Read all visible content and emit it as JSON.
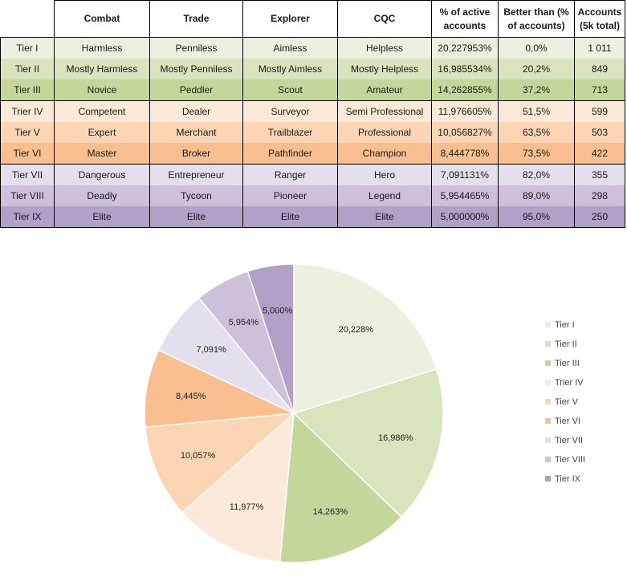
{
  "table": {
    "headers": [
      "",
      "Combat",
      "Trade",
      "Explorer",
      "CQC",
      "% of active accounts",
      "Better than (% of accounts)",
      "Accounts (5k total)"
    ],
    "rows": [
      {
        "tier": "Tier I",
        "combat": "Harmless",
        "trade": "Penniless",
        "explorer": "Aimless",
        "cqc": "Helpless",
        "pct": "20,227953%",
        "better": "0,0%",
        "accounts": "1 011",
        "color": "#ebf1de"
      },
      {
        "tier": "Tier II",
        "combat": "Mostly Harmless",
        "trade": "Mostly Penniless",
        "explorer": "Mostly Aimless",
        "cqc": "Mostly Helpless",
        "pct": "16,985534%",
        "better": "20,2%",
        "accounts": "849",
        "color": "#d8e4bc"
      },
      {
        "tier": "Tier III",
        "combat": "Novice",
        "trade": "Peddler",
        "explorer": "Scout",
        "cqc": "Amateur",
        "pct": "14,262855%",
        "better": "37,2%",
        "accounts": "713",
        "color": "#c4d79b"
      },
      {
        "tier": "Trier IV",
        "combat": "Competent",
        "trade": "Dealer",
        "explorer": "Surveyor",
        "cqc": "Semi Professional",
        "pct": "11,976605%",
        "better": "51,5%",
        "accounts": "599",
        "color": "#fde9d9"
      },
      {
        "tier": "Tier V",
        "combat": "Expert",
        "trade": "Merchant",
        "explorer": "Trailblazer",
        "cqc": "Professional",
        "pct": "10,056827%",
        "better": "63,5%",
        "accounts": "503",
        "color": "#fcd5b4"
      },
      {
        "tier": "Tier VI",
        "combat": "Master",
        "trade": "Broker",
        "explorer": "Pathfinder",
        "cqc": "Champion",
        "pct": "8,444778%",
        "better": "73,5%",
        "accounts": "422",
        "color": "#fabf8f"
      },
      {
        "tier": "Tier VII",
        "combat": "Dangerous",
        "trade": "Entrepreneur",
        "explorer": "Ranger",
        "cqc": "Hero",
        "pct": "7,091131%",
        "better": "82,0%",
        "accounts": "355",
        "color": "#e4dfec"
      },
      {
        "tier": "Tier VIII",
        "combat": "Deadly",
        "trade": "Tycoon",
        "explorer": "Pioneer",
        "cqc": "Legend",
        "pct": "5,954465%",
        "better": "89,0%",
        "accounts": "298",
        "color": "#ccc0da"
      },
      {
        "tier": "Tier IX",
        "combat": "Elite",
        "trade": "Elite",
        "explorer": "Elite",
        "cqc": "Elite",
        "pct": "5,000000%",
        "better": "95,0%",
        "accounts": "250",
        "color": "#b1a0c7"
      }
    ]
  },
  "chart_data": {
    "type": "pie",
    "title": "",
    "categories": [
      "Tier I",
      "Tier II",
      "Tier III",
      "Trier IV",
      "Tier V",
      "Tier VI",
      "Tier VII",
      "Tier VIII",
      "Tier IX"
    ],
    "values": [
      20.228,
      16.986,
      14.263,
      11.977,
      10.057,
      8.445,
      7.091,
      5.954,
      5.0
    ],
    "labels": [
      "20,228%",
      "16,986%",
      "14,263%",
      "11,977%",
      "10,057%",
      "8,445%",
      "7,091%",
      "5,954%",
      "5,000%"
    ],
    "colors": [
      "#ebf1de",
      "#d8e4bc",
      "#c4d79b",
      "#fde9d9",
      "#fcd5b4",
      "#fabf8f",
      "#e4dfec",
      "#ccc0da",
      "#b1a0c7"
    ],
    "legend_position": "right",
    "start": "12 o'clock, clockwise"
  }
}
